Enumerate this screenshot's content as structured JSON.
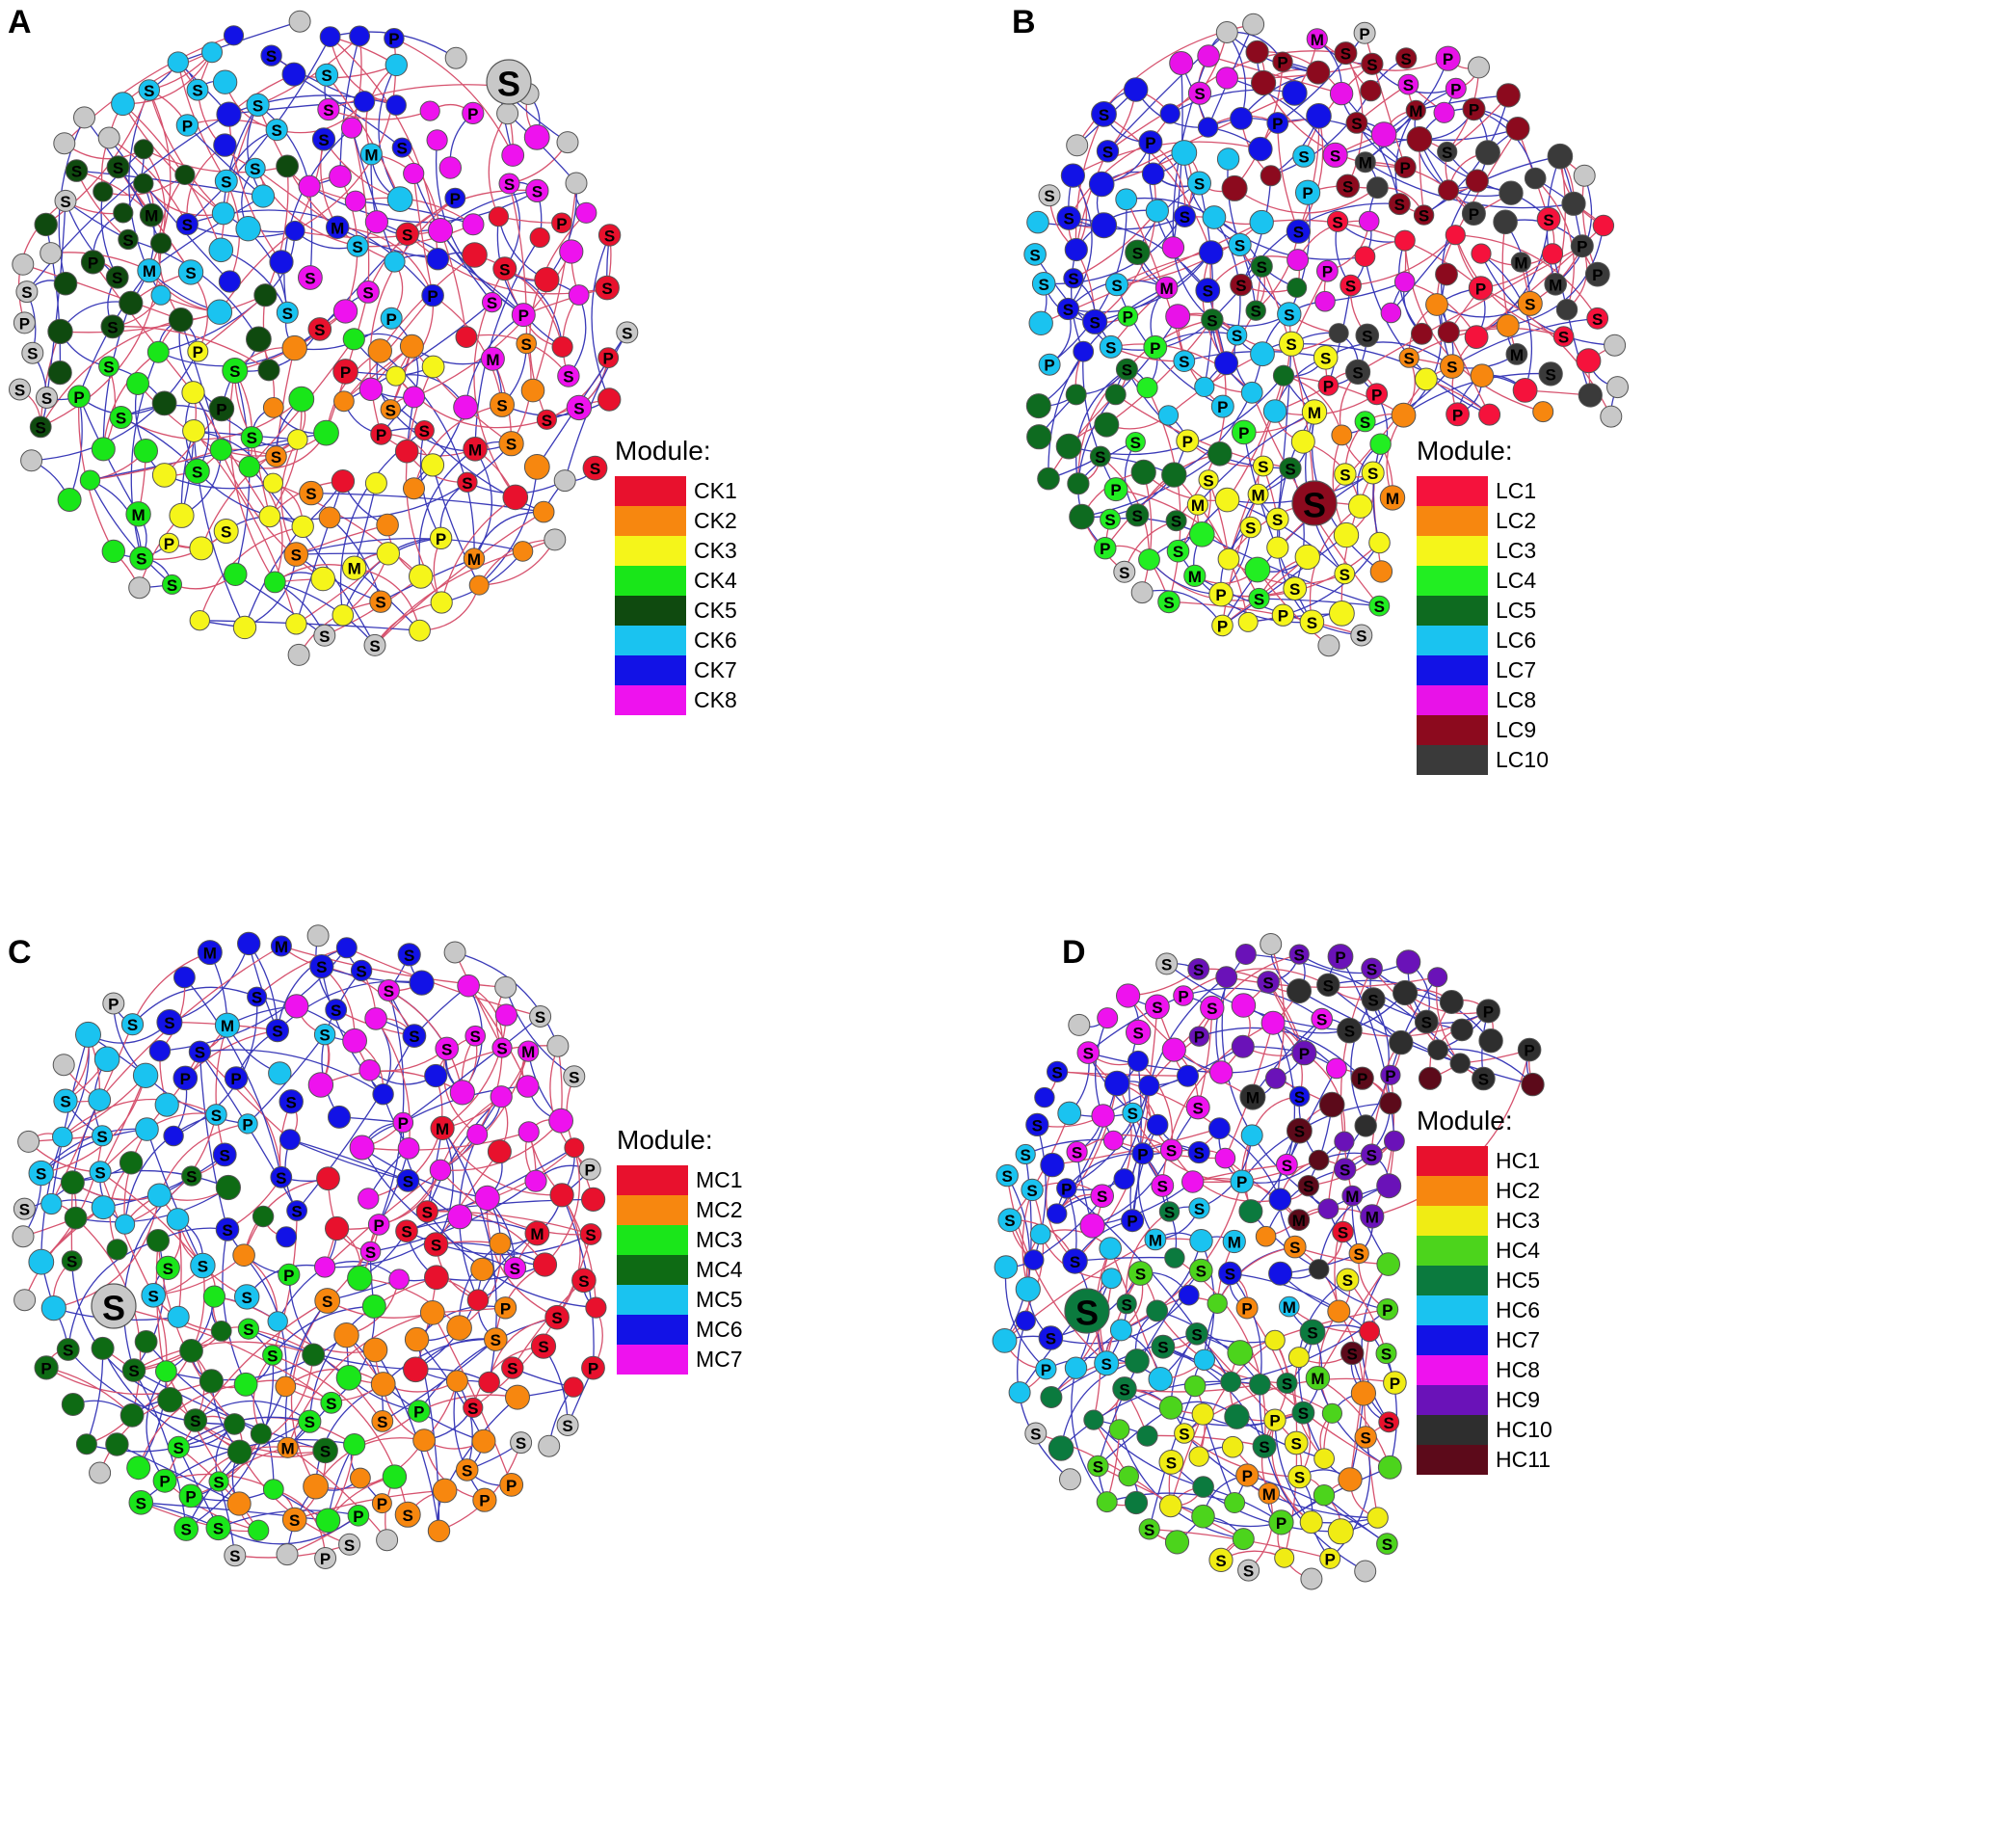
{
  "figure": {
    "panels": [
      {
        "label": "A",
        "legend": {
          "title": "Module:",
          "items": [
            {
              "name": "CK1",
              "color": "#e8112d"
            },
            {
              "name": "CK2",
              "color": "#f7870f"
            },
            {
              "name": "CK3",
              "color": "#f5f51a"
            },
            {
              "name": "CK4",
              "color": "#19e619"
            },
            {
              "name": "CK5",
              "color": "#0f4a0f"
            },
            {
              "name": "CK6",
              "color": "#1ac3f0"
            },
            {
              "name": "CK7",
              "color": "#1212e6"
            },
            {
              "name": "CK8",
              "color": "#ee12ee"
            }
          ]
        }
      },
      {
        "label": "B",
        "legend": {
          "title": "Module:",
          "items": [
            {
              "name": "LC1",
              "color": "#f5123c"
            },
            {
              "name": "LC2",
              "color": "#f7870f"
            },
            {
              "name": "LC3",
              "color": "#f5f51a"
            },
            {
              "name": "LC4",
              "color": "#22ee22"
            },
            {
              "name": "LC5",
              "color": "#0e6b20"
            },
            {
              "name": "LC6",
              "color": "#1ac3f0"
            },
            {
              "name": "LC7",
              "color": "#1212e6"
            },
            {
              "name": "LC8",
              "color": "#e812e8"
            },
            {
              "name": "LC9",
              "color": "#8c0a1e"
            },
            {
              "name": "LC10",
              "color": "#3a3a3a"
            }
          ]
        }
      },
      {
        "label": "C",
        "legend": {
          "title": "Module:",
          "items": [
            {
              "name": "MC1",
              "color": "#e8112d"
            },
            {
              "name": "MC2",
              "color": "#f7870f"
            },
            {
              "name": "MC3",
              "color": "#1ae61a"
            },
            {
              "name": "MC4",
              "color": "#0e6b14"
            },
            {
              "name": "MC5",
              "color": "#1ac3f0"
            },
            {
              "name": "MC6",
              "color": "#1212e6"
            },
            {
              "name": "MC7",
              "color": "#ee12ee"
            }
          ]
        }
      },
      {
        "label": "D",
        "legend": {
          "title": "Module:",
          "items": [
            {
              "name": "HC1",
              "color": "#e8112d"
            },
            {
              "name": "HC2",
              "color": "#f7870f"
            },
            {
              "name": "HC3",
              "color": "#f0ec14"
            },
            {
              "name": "HC4",
              "color": "#4cd41c"
            },
            {
              "name": "HC5",
              "color": "#0b7a3e"
            },
            {
              "name": "HC6",
              "color": "#1ac3f0"
            },
            {
              "name": "HC7",
              "color": "#1212e6"
            },
            {
              "name": "HC8",
              "color": "#ee12ee"
            },
            {
              "name": "HC9",
              "color": "#6a12b8"
            },
            {
              "name": "HC10",
              "color": "#2e2e2e"
            },
            {
              "name": "HC11",
              "color": "#5c0a1a"
            }
          ]
        }
      }
    ],
    "node_labels": [
      "S",
      "P",
      "M"
    ],
    "colors": {
      "unassigned_node": "#c8c8c8",
      "positive_edge": "#d6526e",
      "negative_edge": "#3a3ab8",
      "pale_node": "#dcbcb4"
    }
  }
}
